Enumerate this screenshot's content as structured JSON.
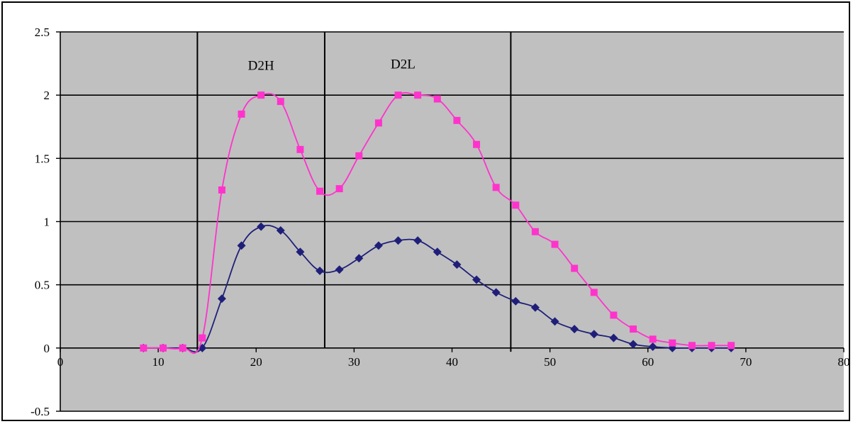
{
  "chart_data": {
    "type": "scatter",
    "xlim": [
      0,
      80
    ],
    "ylim": [
      -0.5,
      2.5
    ],
    "x_ticks": [
      "0",
      "10",
      "20",
      "30",
      "40",
      "50",
      "60",
      "70",
      "80"
    ],
    "y_ticks": [
      "-0.5",
      "0",
      "0.5",
      "1",
      "1.5",
      "2",
      "2.5"
    ],
    "grid": true,
    "plot_background": "#c0c0c0",
    "annotations": [
      {
        "text": "D2H",
        "x": 20.5,
        "y": 2.2
      },
      {
        "text": "D2L",
        "x": 35.0,
        "y": 2.21
      }
    ],
    "fraction_boundaries": [
      {
        "x": 14.0,
        "y_top": 2.5,
        "y_bottom": -0.03
      },
      {
        "x": 27.0,
        "y_top": 2.5,
        "y_bottom": 0.0
      },
      {
        "x": 46.0,
        "y_top": 2.5,
        "y_bottom": -0.03
      }
    ],
    "series": [
      {
        "color": "#1f1f7a",
        "marker": "diamond",
        "points": [
          [
            8.5,
            0.0
          ],
          [
            10.5,
            0.0
          ],
          [
            12.5,
            0.0
          ],
          [
            14.5,
            0.0
          ],
          [
            16.5,
            0.39
          ],
          [
            18.5,
            0.81
          ],
          [
            20.5,
            0.96
          ],
          [
            22.5,
            0.93
          ],
          [
            24.5,
            0.76
          ],
          [
            26.5,
            0.61
          ],
          [
            28.5,
            0.62
          ],
          [
            30.5,
            0.71
          ],
          [
            32.5,
            0.81
          ],
          [
            34.5,
            0.85
          ],
          [
            36.5,
            0.85
          ],
          [
            38.5,
            0.76
          ],
          [
            40.5,
            0.66
          ],
          [
            42.5,
            0.54
          ],
          [
            44.5,
            0.44
          ],
          [
            46.5,
            0.37
          ],
          [
            48.5,
            0.32
          ],
          [
            50.5,
            0.21
          ],
          [
            52.5,
            0.15
          ],
          [
            54.5,
            0.11
          ],
          [
            56.5,
            0.08
          ],
          [
            58.5,
            0.03
          ],
          [
            60.5,
            0.01
          ],
          [
            62.5,
            0.0
          ],
          [
            64.5,
            0.0
          ],
          [
            66.5,
            0.0
          ],
          [
            68.5,
            0.0
          ]
        ]
      },
      {
        "color": "#ff33cc",
        "marker": "square",
        "points": [
          [
            8.5,
            0.0
          ],
          [
            10.5,
            0.0
          ],
          [
            12.5,
            0.0
          ],
          [
            14.5,
            0.08
          ],
          [
            16.5,
            1.25
          ],
          [
            18.5,
            1.85
          ],
          [
            20.5,
            2.0
          ],
          [
            22.5,
            1.95
          ],
          [
            24.5,
            1.57
          ],
          [
            26.5,
            1.24
          ],
          [
            28.5,
            1.26
          ],
          [
            30.5,
            1.52
          ],
          [
            32.5,
            1.78
          ],
          [
            34.5,
            2.0
          ],
          [
            36.5,
            2.0
          ],
          [
            38.5,
            1.97
          ],
          [
            40.5,
            1.8
          ],
          [
            42.5,
            1.61
          ],
          [
            44.5,
            1.27
          ],
          [
            46.5,
            1.13
          ],
          [
            48.5,
            0.92
          ],
          [
            50.5,
            0.82
          ],
          [
            52.5,
            0.63
          ],
          [
            54.5,
            0.44
          ],
          [
            56.5,
            0.26
          ],
          [
            58.5,
            0.15
          ],
          [
            60.5,
            0.07
          ],
          [
            62.5,
            0.04
          ],
          [
            64.5,
            0.02
          ],
          [
            66.5,
            0.02
          ],
          [
            68.5,
            0.02
          ]
        ]
      }
    ]
  }
}
